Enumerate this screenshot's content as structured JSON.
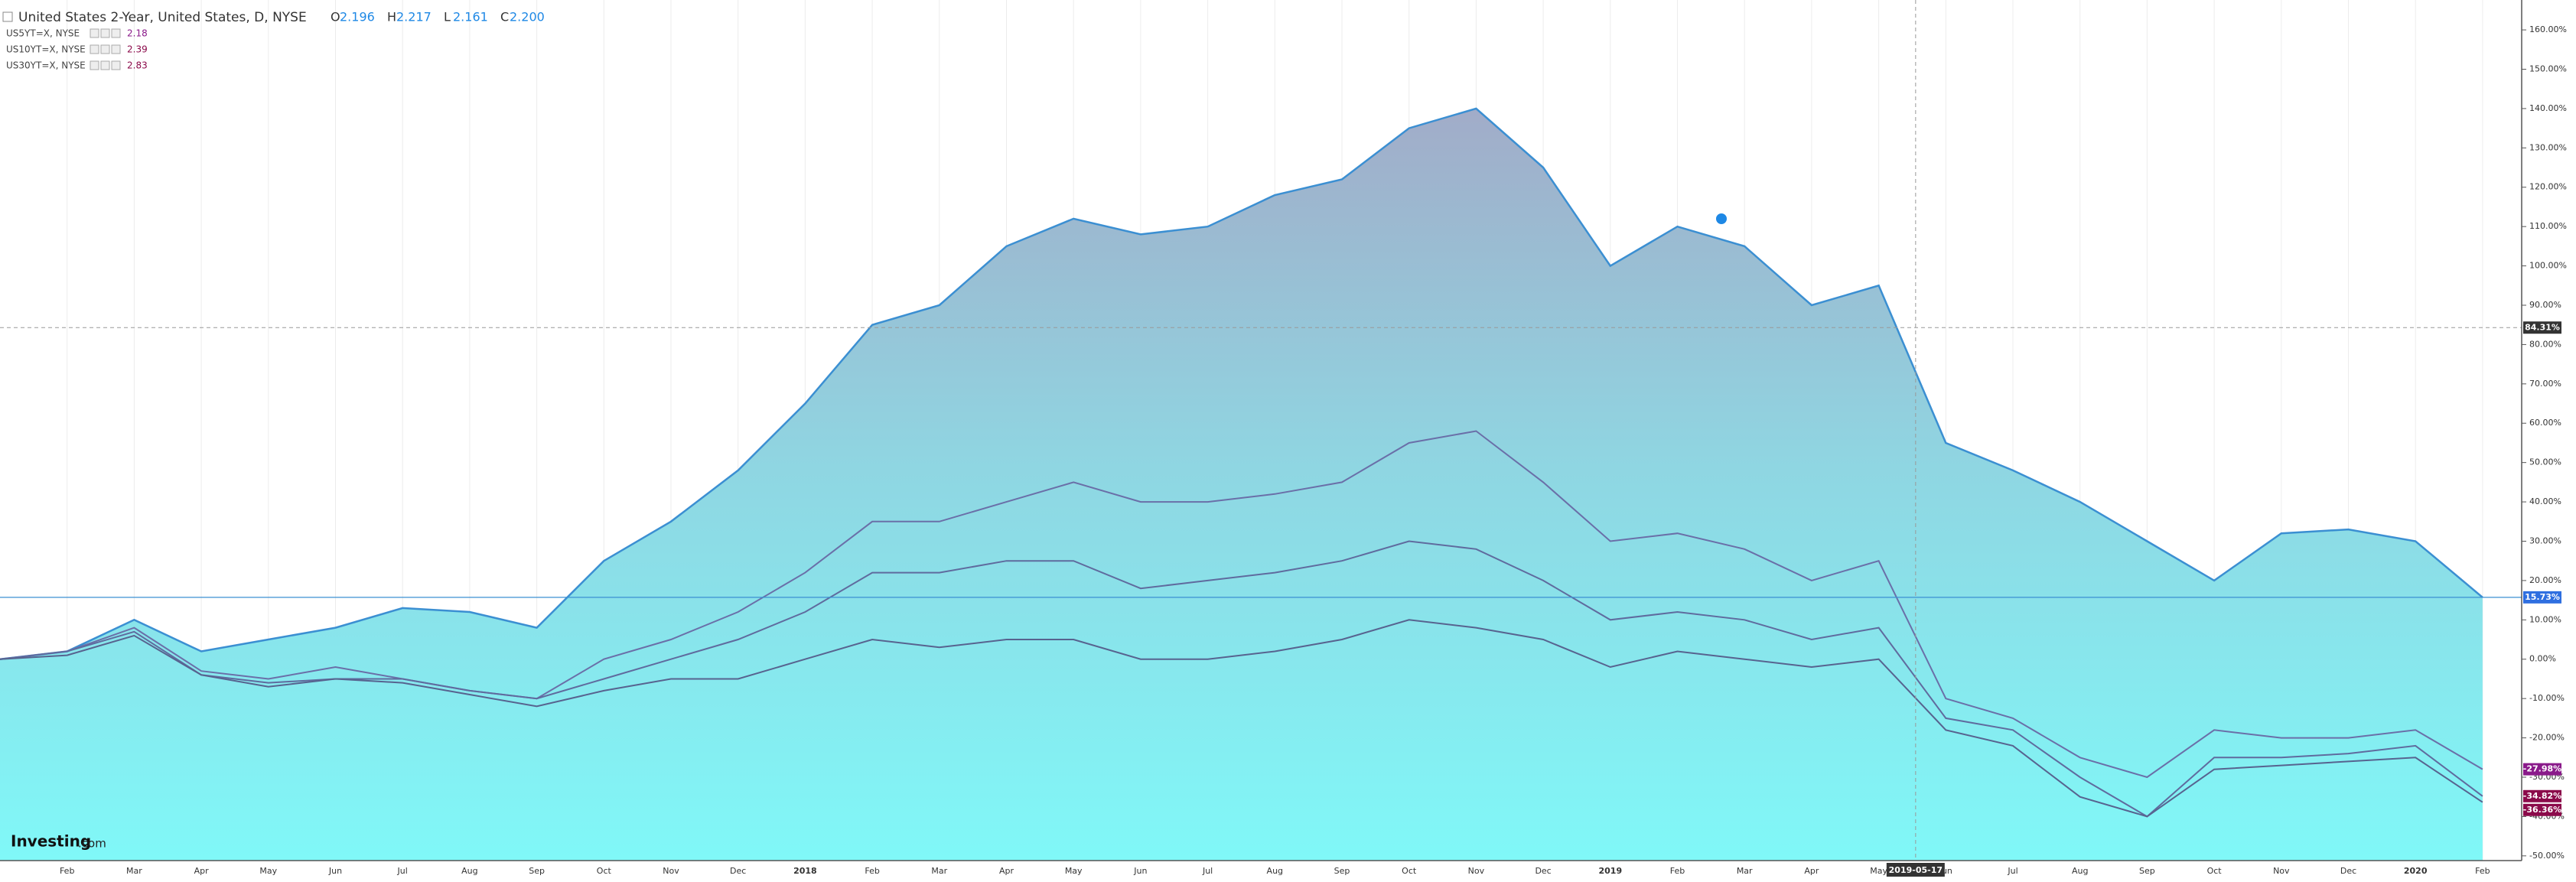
{
  "chart_data": {
    "type": "line",
    "title": "United States 2-Year, United States, D, NYSE",
    "ohlc": [
      "O",
      "2.196",
      "H",
      "2.217",
      "L",
      "2.161",
      "C",
      "2.200"
    ],
    "categories": [
      null,
      "Feb",
      "Mar",
      "Apr",
      "May",
      "Jun",
      "Jul",
      "Aug",
      "Sep",
      "Oct",
      "Nov",
      "Dec",
      "2018",
      "Feb",
      "Mar",
      "Apr",
      "May",
      "Jun",
      "Jul",
      "Aug",
      "Sep",
      "Oct",
      "Nov",
      "Dec",
      "2019",
      "Feb",
      "Mar",
      "Apr",
      "May",
      "Jun",
      "Jul",
      "Aug",
      "Sep",
      "Oct",
      "Nov",
      "Dec",
      "2020",
      "Feb"
    ],
    "series": [
      {
        "name": "United States 2-Year",
        "color": "#3b8fd2",
        "area": true,
        "label_color": "#2f6fe0",
        "end_label": "15.73%",
        "values": [
          0,
          2,
          10,
          2,
          5,
          8,
          13,
          12,
          8,
          25,
          35,
          48,
          65,
          85,
          90,
          105,
          112,
          108,
          110,
          118,
          122,
          135,
          140,
          125,
          100,
          110,
          105,
          90,
          95,
          55,
          48,
          40,
          30,
          20,
          32,
          33,
          30,
          15.73
        ]
      },
      {
        "name": "US5YT=X, NYSE",
        "last": "2.18",
        "color": "#6a6fa8",
        "label_color": "#8a1a8a",
        "end_label": "-27.98%",
        "values": [
          0,
          2,
          8,
          -3,
          -5,
          -2,
          -5,
          -8,
          -10,
          0,
          5,
          12,
          22,
          35,
          35,
          40,
          45,
          40,
          40,
          42,
          45,
          55,
          58,
          45,
          30,
          32,
          28,
          20,
          25,
          -10,
          -15,
          -25,
          -30,
          -18,
          -20,
          -20,
          -18,
          -27.98
        ]
      },
      {
        "name": "US10YT=X, NYSE",
        "last": "2.39",
        "color": "#5f6b9e",
        "label_color": "#8b0a4a",
        "end_label": "-34.82%",
        "values": [
          0,
          2,
          7,
          -4,
          -6,
          -5,
          -5,
          -8,
          -10,
          -5,
          0,
          5,
          12,
          22,
          22,
          25,
          25,
          18,
          20,
          22,
          25,
          30,
          28,
          20,
          10,
          12,
          10,
          5,
          8,
          -15,
          -18,
          -30,
          -40,
          -25,
          -25,
          -24,
          -22,
          -34.82
        ]
      },
      {
        "name": "US30YT=X, NYSE",
        "last": "2.83",
        "color": "#57638f",
        "label_color": "#8b0a4a",
        "end_label": "-36.36%",
        "values": [
          0,
          1,
          6,
          -4,
          -7,
          -5,
          -6,
          -9,
          -12,
          -8,
          -5,
          -5,
          0,
          5,
          3,
          5,
          5,
          0,
          0,
          2,
          5,
          10,
          8,
          5,
          -2,
          2,
          0,
          -2,
          0,
          -18,
          -22,
          -35,
          -40,
          -28,
          -27,
          -26,
          -25,
          -36.36
        ]
      }
    ],
    "ylim": [
      -51.2,
      167.6
    ],
    "yticks": [
      {
        "value": -50,
        "label": "-50.00%"
      },
      {
        "value": -40,
        "label": "-40.00%"
      },
      {
        "value": -30,
        "label": "-30.00%"
      },
      {
        "value": -20,
        "label": "-20.00%"
      },
      {
        "value": -10,
        "label": "-10.00%"
      },
      {
        "value": 0,
        "label": "0.00%"
      },
      {
        "value": 10,
        "label": "10.00%"
      },
      {
        "value": 20,
        "label": "20.00%"
      },
      {
        "value": 30,
        "label": "30.00%"
      },
      {
        "value": 40,
        "label": "40.00%"
      },
      {
        "value": 50,
        "label": "50.00%"
      },
      {
        "value": 60,
        "label": "60.00%"
      },
      {
        "value": 70,
        "label": "70.00%"
      },
      {
        "value": 80,
        "label": "80.00%"
      },
      {
        "value": 90,
        "label": "90.00%"
      },
      {
        "value": 100,
        "label": "100.00%"
      },
      {
        "value": 110,
        "label": "110.00%"
      },
      {
        "value": 120,
        "label": "120.00%"
      },
      {
        "value": 130,
        "label": "130.00%"
      },
      {
        "value": 140,
        "label": "140.00%"
      },
      {
        "value": 150,
        "label": "150.00%"
      },
      {
        "value": 160,
        "label": "160.00%"
      }
    ],
    "grid": true,
    "crosshair": {
      "x_label": "2019-05-17",
      "y_value": 84.31,
      "y_label": "84.31%"
    },
    "logo": [
      "Investing",
      ".com"
    ]
  }
}
